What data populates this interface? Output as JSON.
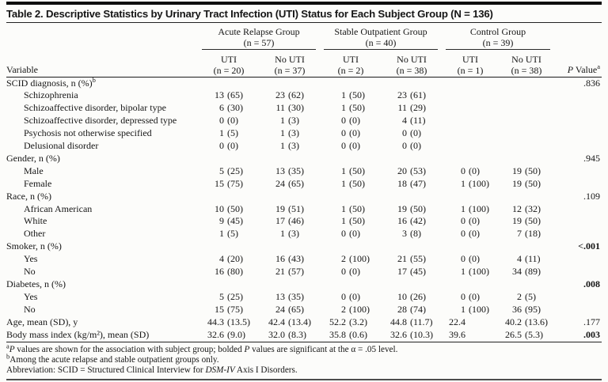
{
  "title": "Table 2. Descriptive Statistics by Urinary Tract Infection (UTI) Status for Each Subject Group (N = 136)",
  "table": {
    "variable_header": "Variable",
    "p_header": {
      "p": "P",
      "rest": " Value",
      "sup": "a"
    },
    "groups": [
      {
        "name": "Acute Relapse Group",
        "n": "(n = 57)"
      },
      {
        "name": "Stable Outpatient Group",
        "n": "(n = 40)"
      },
      {
        "name": "Control Group",
        "n": "(n = 39)"
      }
    ],
    "subcolumns": [
      {
        "label": "UTI",
        "n": "(n = 20)"
      },
      {
        "label": "No UTI",
        "n": "(n = 37)"
      },
      {
        "label": "UTI",
        "n": "(n = 2)"
      },
      {
        "label": "No UTI",
        "n": "(n = 38)"
      },
      {
        "label": "UTI",
        "n": "(n = 1)"
      },
      {
        "label": "No UTI",
        "n": "(n = 38)"
      }
    ],
    "rows": [
      {
        "label": "SCID diagnosis, n (%)",
        "sup": "b",
        "indent": 0,
        "values": [
          "",
          "",
          "",
          "",
          "",
          ""
        ],
        "p": ".836",
        "p_bold": false
      },
      {
        "label": "Schizophrenia",
        "indent": 1,
        "values": [
          "13 (65)",
          "23 (62)",
          "1 (50)",
          "23 (61)",
          "",
          ""
        ],
        "p": ""
      },
      {
        "label": "Schizoaffective disorder, bipolar type",
        "indent": 1,
        "values": [
          "6 (30)",
          "11 (30)",
          "1 (50)",
          "11 (29)",
          "",
          ""
        ],
        "p": ""
      },
      {
        "label": "Schizoaffective disorder, depressed type",
        "indent": 1,
        "values": [
          "0 (0)",
          "1 (3)",
          "0 (0)",
          "4 (11)",
          "",
          ""
        ],
        "p": ""
      },
      {
        "label": "Psychosis not otherwise specified",
        "indent": 1,
        "values": [
          "1 (5)",
          "1 (3)",
          "0 (0)",
          "0 (0)",
          "",
          ""
        ],
        "p": ""
      },
      {
        "label": "Delusional disorder",
        "indent": 1,
        "values": [
          "0 (0)",
          "1 (3)",
          "0 (0)",
          "0 (0)",
          "",
          ""
        ],
        "p": ""
      },
      {
        "label": "Gender, n (%)",
        "indent": 0,
        "values": [
          "",
          "",
          "",
          "",
          "",
          ""
        ],
        "p": ".945",
        "p_bold": false
      },
      {
        "label": "Male",
        "indent": 1,
        "values": [
          "5 (25)",
          "13 (35)",
          "1 (50)",
          "20 (53)",
          "0 (0)",
          "19 (50)"
        ],
        "p": ""
      },
      {
        "label": "Female",
        "indent": 1,
        "values": [
          "15 (75)",
          "24 (65)",
          "1 (50)",
          "18 (47)",
          "1 (100)",
          "19 (50)"
        ],
        "p": ""
      },
      {
        "label": "Race, n (%)",
        "indent": 0,
        "values": [
          "",
          "",
          "",
          "",
          "",
          ""
        ],
        "p": ".109",
        "p_bold": false
      },
      {
        "label": "African American",
        "indent": 1,
        "values": [
          "10 (50)",
          "19 (51)",
          "1 (50)",
          "19 (50)",
          "1 (100)",
          "12 (32)"
        ],
        "p": ""
      },
      {
        "label": "White",
        "indent": 1,
        "values": [
          "9 (45)",
          "17 (46)",
          "1 (50)",
          "16 (42)",
          "0 (0)",
          "19 (50)"
        ],
        "p": ""
      },
      {
        "label": "Other",
        "indent": 1,
        "values": [
          "1 (5)",
          "1 (3)",
          "0 (0)",
          "3 (8)",
          "0 (0)",
          "7 (18)"
        ],
        "p": ""
      },
      {
        "label": "Smoker, n (%)",
        "indent": 0,
        "values": [
          "",
          "",
          "",
          "",
          "",
          ""
        ],
        "p": "<.001",
        "p_bold": true
      },
      {
        "label": "Yes",
        "indent": 1,
        "values": [
          "4 (20)",
          "16 (43)",
          "2 (100)",
          "21 (55)",
          "0 (0)",
          "4 (11)"
        ],
        "p": ""
      },
      {
        "label": "No",
        "indent": 1,
        "values": [
          "16 (80)",
          "21 (57)",
          "0 (0)",
          "17 (45)",
          "1 (100)",
          "34 (89)"
        ],
        "p": ""
      },
      {
        "label": "Diabetes, n (%)",
        "indent": 0,
        "values": [
          "",
          "",
          "",
          "",
          "",
          ""
        ],
        "p": ".008",
        "p_bold": true
      },
      {
        "label": "Yes",
        "indent": 1,
        "values": [
          "5 (25)",
          "13 (35)",
          "0 (0)",
          "10 (26)",
          "0 (0)",
          "2 (5)"
        ],
        "p": ""
      },
      {
        "label": "No",
        "indent": 1,
        "values": [
          "15 (75)",
          "24 (65)",
          "2 (100)",
          "28 (74)",
          "1 (100)",
          "36 (95)"
        ],
        "p": ""
      },
      {
        "label": "Age, mean (SD), y",
        "indent": 0,
        "values": [
          "44.3 (13.5)",
          "42.4 (13.4)",
          "52.2 (3.2)",
          "44.8 (11.7)",
          "22.4",
          "40.2 (13.6)"
        ],
        "p": ".177",
        "p_bold": false
      },
      {
        "label": "Body mass index (kg/m²), mean (SD)",
        "indent": 0,
        "values": [
          "32.6 (9.0)",
          "32.0 (8.3)",
          "35.8 (0.6)",
          "32.6 (10.3)",
          "39.6",
          "26.5 (5.3)"
        ],
        "p": ".003",
        "p_bold": true
      }
    ]
  },
  "footnotes": [
    [
      {
        "sup": "a"
      },
      {
        "i": "P"
      },
      {
        "t": " values are shown for the association with subject group; bolded "
      },
      {
        "i": "P"
      },
      {
        "t": " values are significant at the α = .05 level."
      }
    ],
    [
      {
        "sup": "b"
      },
      {
        "t": "Among the acute relapse and stable outpatient groups only."
      }
    ],
    [
      {
        "t": "Abbreviation: SCID = Structured Clinical Interview for "
      },
      {
        "i": "DSM-IV"
      },
      {
        "t": " Axis I Disorders."
      }
    ]
  ]
}
